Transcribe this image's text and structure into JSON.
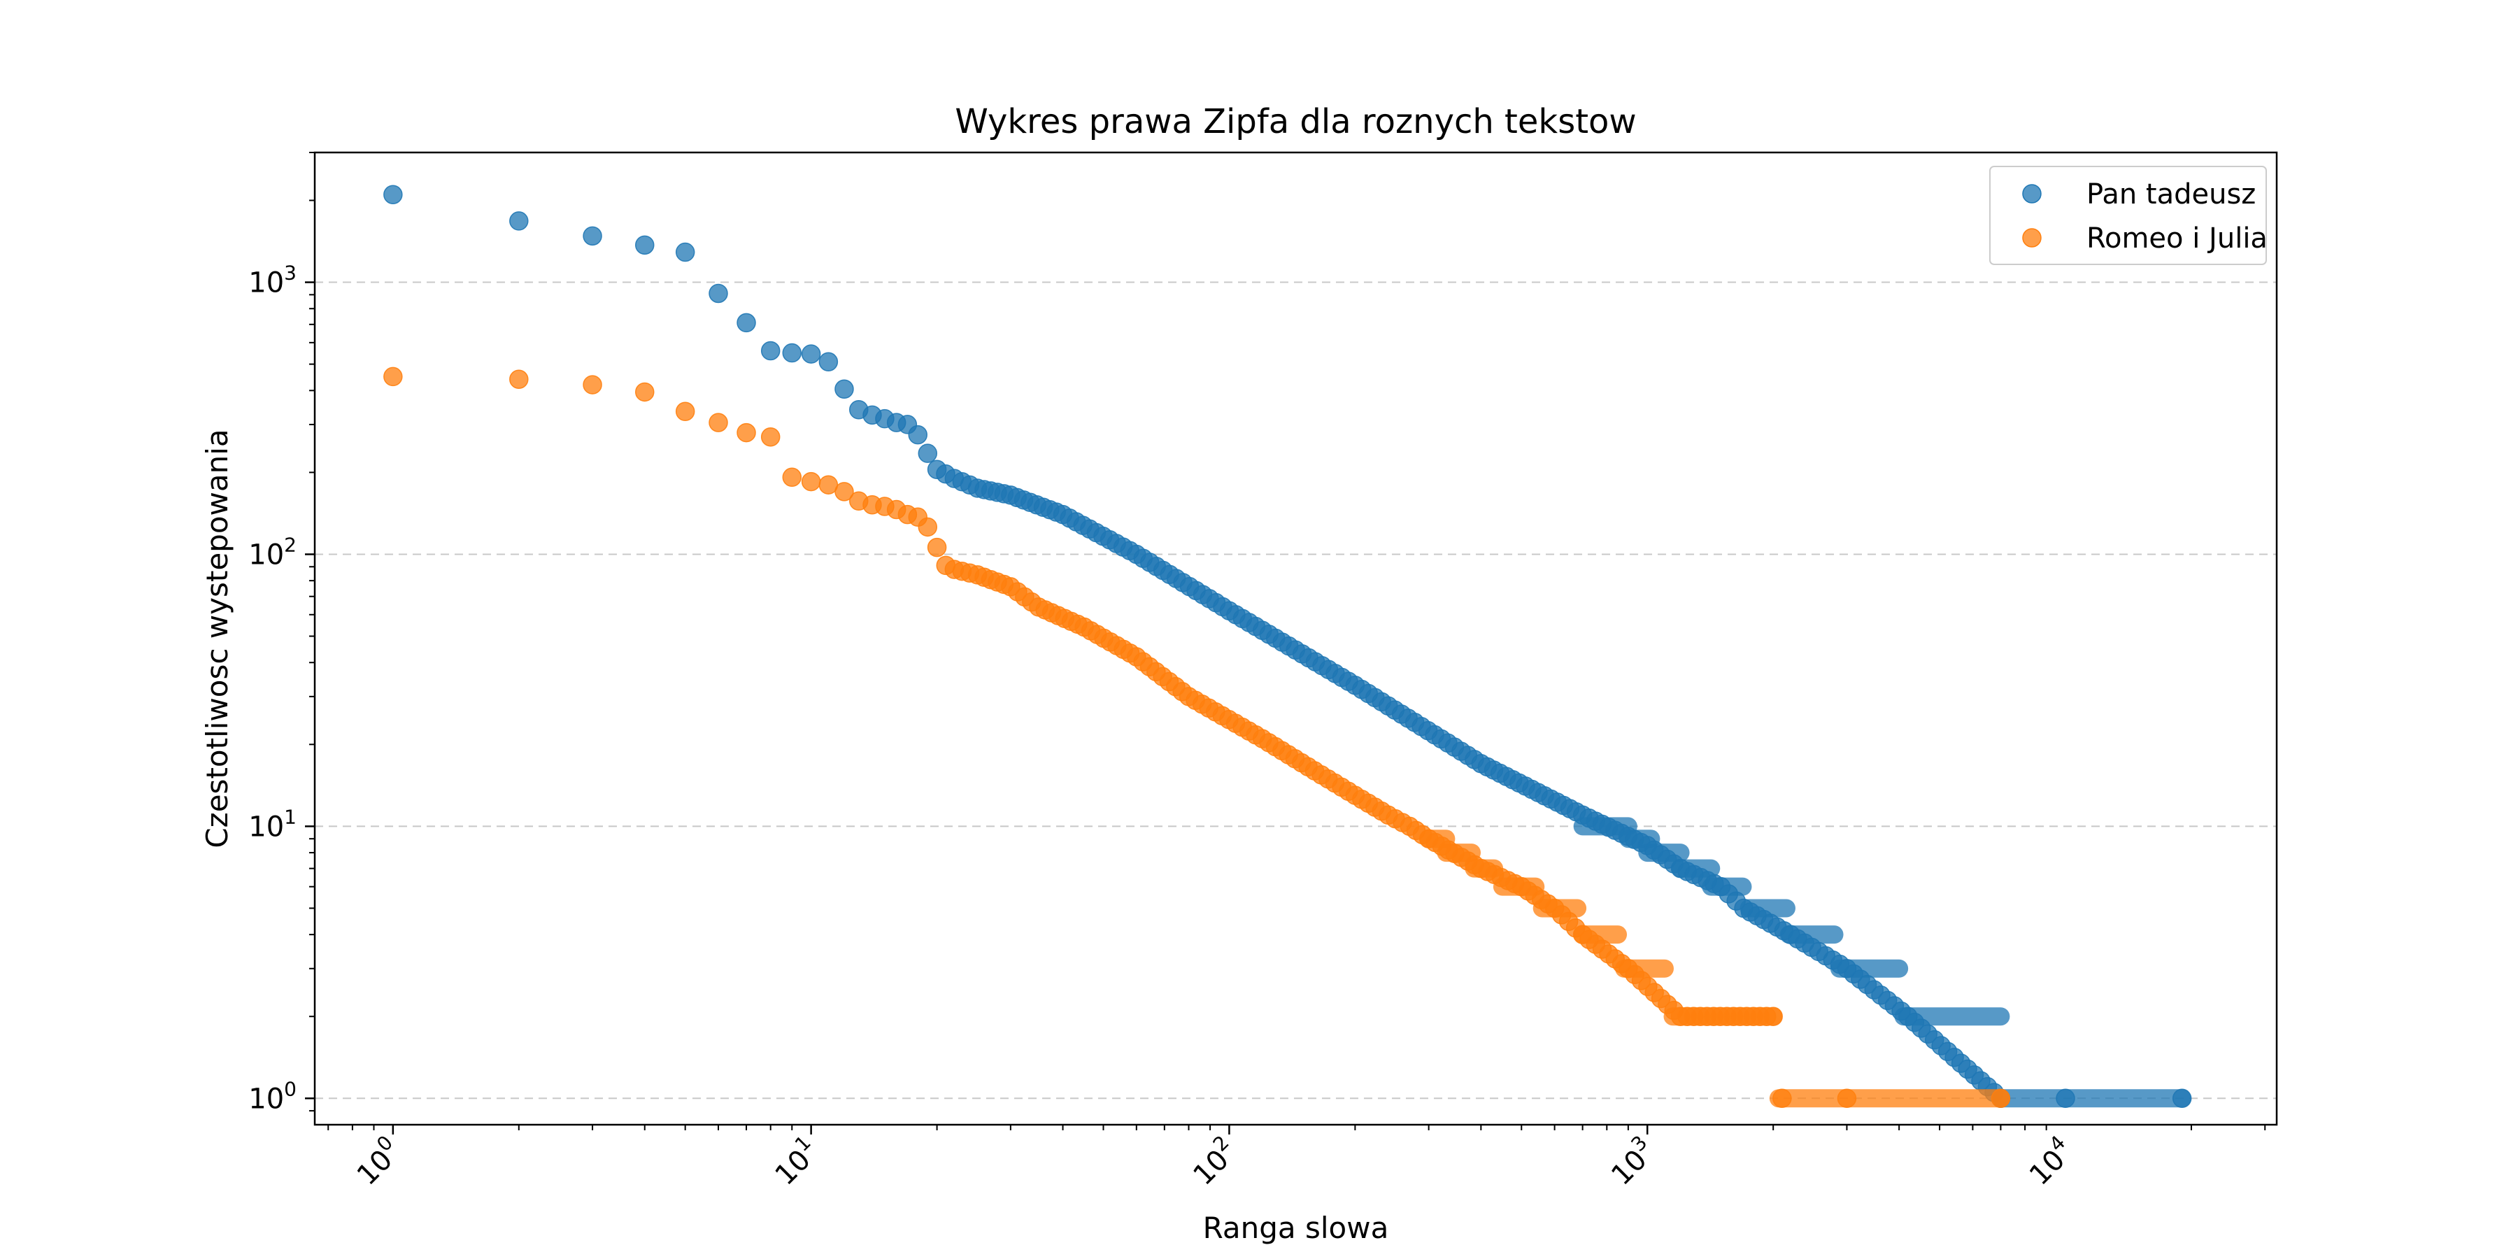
{
  "chart_data": {
    "type": "scatter",
    "title": "Wykres prawa Zipfa dla roznych tekstow",
    "xlabel": "Ranga slowa",
    "ylabel": "Czestotliwosc wystepowania",
    "xscale": "log",
    "yscale": "log",
    "xlim": [
      0.65,
      32000
    ],
    "ylim": [
      0.8,
      3000
    ],
    "grid": "y-major dashed",
    "legend_position": "upper right",
    "x_ticks": [
      {
        "base": "10",
        "exp": "0",
        "value": 1
      },
      {
        "base": "10",
        "exp": "1",
        "value": 10
      },
      {
        "base": "10",
        "exp": "2",
        "value": 100
      },
      {
        "base": "10",
        "exp": "3",
        "value": 1000
      },
      {
        "base": "10",
        "exp": "4",
        "value": 10000
      }
    ],
    "y_ticks": [
      {
        "base": "10",
        "exp": "0",
        "value": 1
      },
      {
        "base": "10",
        "exp": "1",
        "value": 10
      },
      {
        "base": "10",
        "exp": "2",
        "value": 100
      },
      {
        "base": "10",
        "exp": "3",
        "value": 1000
      }
    ],
    "series": [
      {
        "name": "Pan tadeusz",
        "color": "#1f77b4",
        "points": [
          [
            1,
            2100
          ],
          [
            2,
            1680
          ],
          [
            3,
            1480
          ],
          [
            4,
            1370
          ],
          [
            5,
            1290
          ],
          [
            6,
            910
          ],
          [
            7,
            710
          ],
          [
            8,
            560
          ],
          [
            9,
            550
          ],
          [
            10,
            545
          ],
          [
            11,
            510
          ],
          [
            12,
            405
          ],
          [
            13,
            340
          ],
          [
            14,
            325
          ],
          [
            15,
            315
          ],
          [
            16,
            305
          ],
          [
            17,
            300
          ],
          [
            18,
            275
          ],
          [
            19,
            235
          ],
          [
            20,
            205
          ],
          [
            22,
            190
          ],
          [
            25,
            175
          ],
          [
            30,
            165
          ],
          [
            40,
            140
          ],
          [
            60,
            100
          ],
          [
            100,
            62
          ],
          [
            200,
            33
          ],
          [
            400,
            17
          ],
          [
            700,
            11
          ],
          [
            1000,
            8.5
          ],
          [
            1200,
            7
          ],
          [
            1500,
            6
          ],
          [
            1700,
            5
          ],
          [
            2200,
            4
          ],
          [
            3000,
            3
          ],
          [
            4200,
            2
          ],
          [
            7000,
            1
          ],
          [
            10000,
            1
          ],
          [
            19000,
            1
          ]
        ],
        "plateaus": [
          {
            "y": 10,
            "x_from": 700,
            "x_to": 900
          },
          {
            "y": 9,
            "x_from": 900,
            "x_to": 1020
          },
          {
            "y": 8,
            "x_from": 1000,
            "x_to": 1200
          },
          {
            "y": 7,
            "x_from": 1200,
            "x_to": 1420
          },
          {
            "y": 6,
            "x_from": 1420,
            "x_to": 1690
          },
          {
            "y": 5,
            "x_from": 1750,
            "x_to": 2150
          },
          {
            "y": 4,
            "x_from": 2180,
            "x_to": 2800
          },
          {
            "y": 3,
            "x_from": 2880,
            "x_to": 4000
          },
          {
            "y": 2,
            "x_from": 4100,
            "x_to": 7000
          },
          {
            "y": 1,
            "x_from": 7000,
            "x_to": 19000
          }
        ]
      },
      {
        "name": "Romeo i Julia",
        "color": "#ff7f0e",
        "points": [
          [
            1,
            450
          ],
          [
            2,
            440
          ],
          [
            3,
            420
          ],
          [
            4,
            395
          ],
          [
            5,
            335
          ],
          [
            6,
            305
          ],
          [
            7,
            280
          ],
          [
            8,
            270
          ],
          [
            9,
            192
          ],
          [
            10,
            185
          ],
          [
            11,
            180
          ],
          [
            12,
            170
          ],
          [
            13,
            157
          ],
          [
            14,
            152
          ],
          [
            15,
            150
          ],
          [
            16,
            146
          ],
          [
            17,
            140
          ],
          [
            18,
            137
          ],
          [
            19,
            126
          ],
          [
            20,
            106
          ],
          [
            21,
            91
          ],
          [
            22,
            88
          ],
          [
            25,
            84
          ],
          [
            30,
            76
          ],
          [
            35,
            64
          ],
          [
            45,
            54
          ],
          [
            60,
            42
          ],
          [
            80,
            30
          ],
          [
            120,
            21
          ],
          [
            160,
            16
          ],
          [
            200,
            13
          ],
          [
            240,
            11
          ],
          [
            270,
            10
          ],
          [
            300,
            9
          ],
          [
            400,
            7
          ],
          [
            500,
            6
          ],
          [
            600,
            5
          ],
          [
            700,
            4
          ],
          [
            900,
            3
          ],
          [
            1200,
            2
          ],
          [
            2000,
            2
          ],
          [
            2100,
            1
          ],
          [
            3000,
            1
          ],
          [
            7000,
            1
          ]
        ],
        "plateaus": [
          {
            "y": 9,
            "x_from": 300,
            "x_to": 330
          },
          {
            "y": 8,
            "x_from": 330,
            "x_to": 380
          },
          {
            "y": 7,
            "x_from": 385,
            "x_to": 430
          },
          {
            "y": 6,
            "x_from": 450,
            "x_to": 540
          },
          {
            "y": 5,
            "x_from": 560,
            "x_to": 680
          },
          {
            "y": 4,
            "x_from": 700,
            "x_to": 850
          },
          {
            "y": 3,
            "x_from": 880,
            "x_to": 1100
          },
          {
            "y": 2,
            "x_from": 1150,
            "x_to": 2000
          },
          {
            "y": 1,
            "x_from": 2060,
            "x_to": 7000
          }
        ]
      }
    ]
  }
}
